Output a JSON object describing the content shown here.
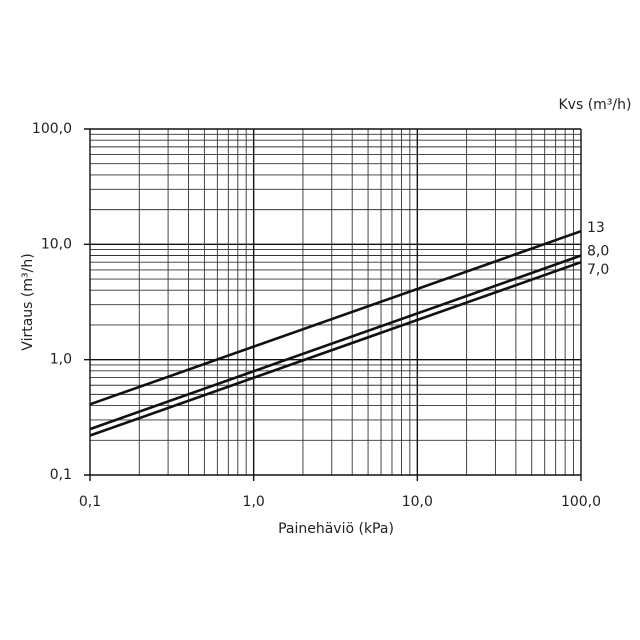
{
  "chart_data": {
    "type": "line",
    "log_x": true,
    "log_y": true,
    "grid": true,
    "minor_grid": true,
    "xlabel": "Painehäviö (kPa)",
    "ylabel": "Virtaus (m³/h)",
    "legend_title": "Kvs (m³/h)",
    "x": [
      0.1,
      100
    ],
    "xlim": [
      0.1,
      100
    ],
    "ylim": [
      0.1,
      100
    ],
    "xticks": [
      {
        "value": 0.1,
        "label": "0,1"
      },
      {
        "value": 1,
        "label": "1,0"
      },
      {
        "value": 10,
        "label": "10,0"
      },
      {
        "value": 100,
        "label": "100,0"
      }
    ],
    "yticks": [
      {
        "value": 0.1,
        "label": "0,1"
      },
      {
        "value": 1,
        "label": "1,0"
      },
      {
        "value": 10,
        "label": "10,0"
      },
      {
        "value": 100,
        "label": "100,0"
      }
    ],
    "series": [
      {
        "name": "13",
        "color": "#111111",
        "values": [
          0.41,
          13
        ]
      },
      {
        "name": "8,0",
        "color": "#111111",
        "values": [
          0.25,
          8.0
        ]
      },
      {
        "name": "7,0",
        "color": "#111111",
        "values": [
          0.22,
          7.0
        ]
      }
    ]
  }
}
